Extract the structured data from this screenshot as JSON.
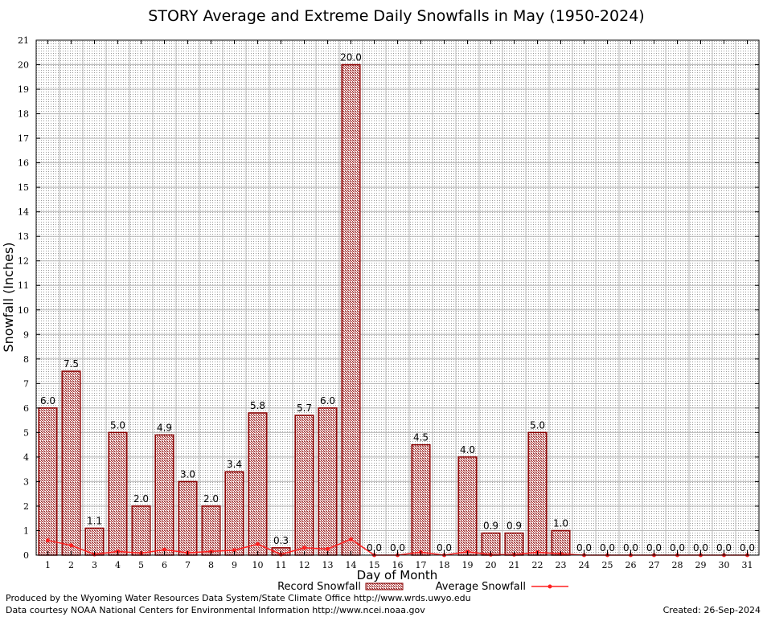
{
  "chart_data": {
    "type": "bar",
    "title": "STORY Average and Extreme Daily Snowfalls in May (1950-2024)",
    "xlabel": "Day of Month",
    "ylabel": "Snowfall (Inches)",
    "ylim": [
      0,
      21
    ],
    "yticks": [
      0,
      1,
      2,
      3,
      4,
      5,
      6,
      7,
      8,
      9,
      10,
      11,
      12,
      13,
      14,
      15,
      16,
      17,
      18,
      19,
      20,
      21
    ],
    "categories": [
      1,
      2,
      3,
      4,
      5,
      6,
      7,
      8,
      9,
      10,
      11,
      12,
      13,
      14,
      15,
      16,
      17,
      18,
      19,
      20,
      21,
      22,
      23,
      24,
      25,
      26,
      27,
      28,
      29,
      30,
      31
    ],
    "series": [
      {
        "name": "Record Snowfall",
        "type": "bar",
        "values": [
          6.0,
          7.5,
          1.1,
          5.0,
          2.0,
          4.9,
          3.0,
          2.0,
          3.4,
          5.8,
          0.3,
          5.7,
          6.0,
          20.0,
          0.0,
          0.0,
          4.5,
          0.0,
          4.0,
          0.9,
          0.9,
          5.0,
          1.0,
          0.0,
          0.0,
          0.0,
          0.0,
          0.0,
          0.0,
          0.0,
          0.0
        ],
        "labels": [
          "6.0",
          "7.5",
          "1.1",
          "5.0",
          "2.0",
          "4.9",
          "3.0",
          "2.0",
          "3.4",
          "5.8",
          "0.3",
          "5.7",
          "6.0",
          "20.0",
          "0.0",
          "0.0",
          "4.5",
          "0.0",
          "4.0",
          "0.9",
          "0.9",
          "5.0",
          "1.0",
          "0.0",
          "0.0",
          "0.0",
          "0.0",
          "0.0",
          "0.0",
          "0.0",
          "0.0"
        ]
      },
      {
        "name": "Average Snowfall",
        "type": "line",
        "values": [
          0.6,
          0.4,
          0.03,
          0.15,
          0.08,
          0.22,
          0.1,
          0.15,
          0.2,
          0.45,
          0.03,
          0.3,
          0.25,
          0.65,
          0.0,
          0.0,
          0.12,
          0.0,
          0.14,
          0.02,
          0.02,
          0.12,
          0.05,
          0.0,
          0.0,
          0.0,
          0.0,
          0.0,
          0.0,
          0.0,
          0.0
        ]
      }
    ],
    "grid": true,
    "legend": "bottom"
  },
  "footer": {
    "line1": "Produced by the Wyoming Water Resources Data System/State Climate Office http://www.wrds.uwyo.edu",
    "line2": "Data courtesy NOAA National Centers for Environmental Information http://www.ncei.noaa.gov",
    "created": "Created:  26-Sep-2024"
  },
  "colors": {
    "bar_edge": "#8b0000",
    "bar_fill": "#c08080",
    "line": "#ff2020",
    "grid": "#b8b8b8"
  }
}
